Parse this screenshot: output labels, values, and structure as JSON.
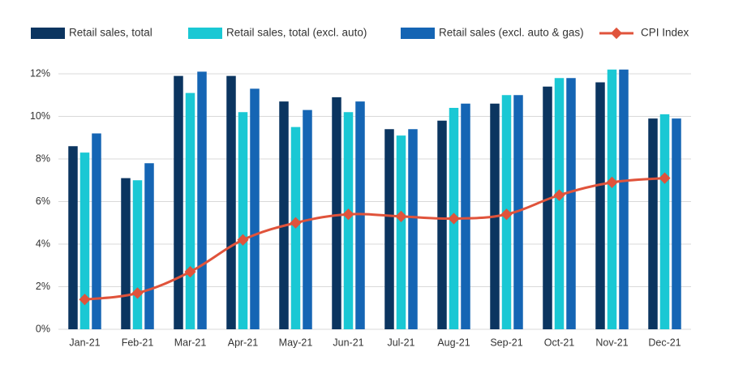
{
  "chart_data": {
    "type": "bar-line",
    "categories": [
      "Jan-21",
      "Feb-21",
      "Mar-21",
      "Apr-21",
      "May-21",
      "Jun-21",
      "Jul-21",
      "Aug-21",
      "Sep-21",
      "Oct-21",
      "Nov-21",
      "Dec-21"
    ],
    "series": [
      {
        "name": "Retail sales, total",
        "color": "#0b3560",
        "type": "bar",
        "values": [
          8.6,
          7.1,
          11.9,
          11.9,
          10.7,
          10.9,
          9.4,
          9.8,
          10.6,
          11.4,
          11.6,
          9.9
        ]
      },
      {
        "name": "Retail sales, total (excl. auto)",
        "color": "#1ac8d4",
        "type": "bar",
        "values": [
          8.3,
          7.0,
          11.1,
          10.2,
          9.5,
          10.2,
          9.1,
          10.4,
          11.0,
          11.8,
          12.2,
          10.1
        ]
      },
      {
        "name": "Retail sales (excl. auto & gas)",
        "color": "#1565b4",
        "type": "bar",
        "values": [
          9.2,
          7.8,
          12.1,
          11.3,
          10.3,
          10.7,
          9.4,
          10.6,
          11.0,
          11.8,
          12.2,
          9.9
        ]
      },
      {
        "name": "CPI Index",
        "color": "#e0533b",
        "type": "line",
        "values": [
          1.4,
          1.7,
          2.7,
          4.2,
          5.0,
          5.4,
          5.3,
          5.2,
          5.4,
          6.3,
          6.9,
          7.1
        ]
      }
    ],
    "ylim": [
      0,
      12.5
    ],
    "yticks": [
      {
        "value": 0,
        "label": "0%"
      },
      {
        "value": 2,
        "label": "2%"
      },
      {
        "value": 4,
        "label": "4%"
      },
      {
        "value": 6,
        "label": "6%"
      },
      {
        "value": 8,
        "label": "8%"
      },
      {
        "value": 10,
        "label": "10%"
      },
      {
        "value": 12,
        "label": "12%"
      }
    ],
    "grid": true
  }
}
